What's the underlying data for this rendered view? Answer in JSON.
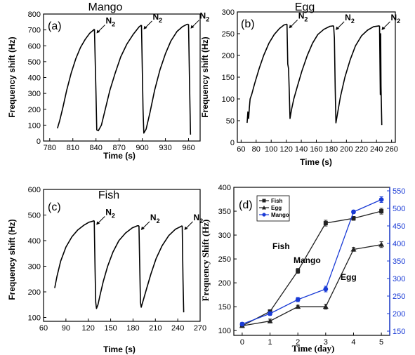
{
  "chart_data": [
    {
      "panel_label": "(a)",
      "title": "Mango",
      "type": "line",
      "xlabel": "Time (s)",
      "ylabel": "Frequency shift (Hz)",
      "xlim": [
        772,
        975
      ],
      "ylim": [
        0,
        800
      ],
      "xticks": [
        "780",
        "810",
        "840",
        "870",
        "900",
        "930",
        "960"
      ],
      "yticks": [
        "0",
        "100",
        "200",
        "300",
        "400",
        "500",
        "600",
        "700",
        "800"
      ],
      "annotation": "N",
      "annotation_sub": "2",
      "cycles": [
        {
          "x": [
            790,
            793,
            797,
            802,
            808,
            814,
            820,
            826,
            832,
            837,
            838
          ],
          "y": [
            80,
            130,
            210,
            320,
            430,
            520,
            590,
            640,
            680,
            700,
            705
          ]
        },
        {
          "x": [
            838,
            840,
            841,
            843,
            847,
            852,
            858,
            865,
            872,
            880,
            888,
            896,
            899
          ],
          "y": [
            705,
            300,
            70,
            65,
            100,
            200,
            320,
            430,
            530,
            610,
            670,
            720,
            730
          ]
        },
        {
          "x": [
            899,
            901,
            902,
            905,
            910,
            916,
            923,
            930,
            937,
            945,
            952,
            958,
            960
          ],
          "y": [
            730,
            200,
            50,
            75,
            180,
            320,
            450,
            550,
            630,
            690,
            720,
            735,
            735
          ]
        },
        {
          "x": [
            960,
            961.5,
            962.5
          ],
          "y": [
            735,
            300,
            40
          ]
        }
      ],
      "n2_marks": [
        {
          "x": 838,
          "y": 705
        },
        {
          "x": 899,
          "y": 730
        },
        {
          "x": 960,
          "y": 735
        }
      ]
    },
    {
      "panel_label": "(b)",
      "title": "Egg",
      "type": "line",
      "xlabel": "Time (s)",
      "ylabel": "Frequency shift (Hz)",
      "xlim": [
        55,
        265
      ],
      "ylim": [
        0,
        300
      ],
      "xticks": [
        "60",
        "80",
        "100",
        "120",
        "140",
        "160",
        "180",
        "200",
        "220",
        "240",
        "260"
      ],
      "yticks": [
        "0",
        "50",
        "100",
        "150",
        "200",
        "250",
        "300"
      ],
      "annotation": "N",
      "annotation_sub": "2",
      "cycles": [
        {
          "x": [
            68,
            69,
            70,
            71,
            72,
            74,
            78,
            84,
            90,
            97,
            104,
            111,
            117,
            121
          ],
          "y": [
            45,
            70,
            55,
            80,
            100,
            110,
            135,
            170,
            200,
            228,
            248,
            262,
            270,
            272
          ]
        },
        {
          "x": [
            121,
            122,
            123,
            124,
            125,
            127,
            130,
            135,
            141,
            148,
            155,
            162,
            170,
            178,
            183
          ],
          "y": [
            272,
            180,
            170,
            120,
            55,
            75,
            100,
            130,
            165,
            200,
            228,
            248,
            260,
            267,
            268
          ]
        },
        {
          "x": [
            183,
            184,
            185,
            186,
            188,
            192,
            198,
            205,
            212,
            220,
            228,
            236,
            244
          ],
          "y": [
            268,
            240,
            130,
            45,
            65,
            105,
            150,
            190,
            222,
            245,
            258,
            266,
            268
          ]
        },
        {
          "x": [
            244,
            245,
            245.5,
            246,
            247
          ],
          "y": [
            268,
            110,
            250,
            130,
            40
          ]
        }
      ],
      "n2_marks": [
        {
          "x": 121,
          "y": 272
        },
        {
          "x": 183,
          "y": 268
        },
        {
          "x": 244,
          "y": 268
        }
      ]
    },
    {
      "panel_label": "(c)",
      "title": "Fish",
      "type": "line",
      "xlabel": "Time (s)",
      "ylabel": "Frequency shift (Hz)",
      "xlim": [
        60,
        270
      ],
      "ylim": [
        85,
        600
      ],
      "xticks": [
        "60",
        "90",
        "120",
        "150",
        "180",
        "210",
        "240",
        "270"
      ],
      "yticks": [
        "100",
        "200",
        "300",
        "400",
        "500",
        "600"
      ],
      "annotation": "N",
      "annotation_sub": "2",
      "cycles": [
        {
          "x": [
            75,
            78,
            83,
            90,
            98,
            106,
            114,
            121,
            126,
            128
          ],
          "y": [
            215,
            260,
            320,
            375,
            415,
            442,
            460,
            472,
            476,
            478
          ]
        },
        {
          "x": [
            128,
            129,
            130,
            131,
            133,
            136,
            140,
            146,
            153,
            161,
            170,
            179,
            186,
            188
          ],
          "y": [
            478,
            300,
            160,
            135,
            150,
            190,
            240,
            300,
            355,
            400,
            430,
            450,
            458,
            458
          ]
        },
        {
          "x": [
            188,
            189,
            190,
            191,
            194,
            198,
            204,
            211,
            219,
            228,
            237,
            244,
            246
          ],
          "y": [
            458,
            300,
            160,
            140,
            170,
            210,
            270,
            330,
            380,
            420,
            445,
            455,
            458
          ]
        },
        {
          "x": [
            246,
            247,
            248
          ],
          "y": [
            458,
            250,
            120
          ]
        }
      ],
      "n2_marks": [
        {
          "x": 128,
          "y": 478
        },
        {
          "x": 188,
          "y": 458
        },
        {
          "x": 246,
          "y": 458
        }
      ]
    },
    {
      "panel_label": "(d)",
      "title": "",
      "type": "line",
      "xlabel": "Time (day)",
      "ylabel": "Frequency Shift (Hz)",
      "xlim": [
        -0.3,
        5.3
      ],
      "ylim": [
        90,
        400
      ],
      "y2lim": [
        138,
        560
      ],
      "xticks": [
        "0",
        "1",
        "2",
        "3",
        "4",
        "5"
      ],
      "yticks": [
        "100",
        "150",
        "200",
        "250",
        "300",
        "350",
        "400"
      ],
      "y2ticks": [
        "150",
        "200",
        "250",
        "300",
        "350",
        "400",
        "450",
        "500",
        "550"
      ],
      "x": [
        0,
        1,
        2,
        3,
        4,
        5
      ],
      "series": [
        {
          "name": "Fish",
          "values": [
            110,
            140,
            225,
            325,
            335,
            350
          ],
          "axis": "left",
          "marker": "square",
          "color": "#222222",
          "err": [
            3,
            3,
            5,
            6,
            4,
            6
          ]
        },
        {
          "name": "Egg",
          "values": [
            110,
            120,
            150,
            150,
            270,
            280
          ],
          "axis": "left",
          "marker": "triangle",
          "color": "#222222",
          "err": [
            3,
            4,
            3,
            5,
            4,
            6
          ]
        },
        {
          "name": "Mango",
          "values": [
            170,
            200,
            240,
            270,
            490,
            525
          ],
          "axis": "right",
          "marker": "circle",
          "color": "#1a3bd6",
          "err": [
            5,
            5,
            6,
            8,
            5,
            8
          ]
        }
      ],
      "series_annotations": [
        "Fish",
        "Mango",
        "Egg"
      ],
      "legend": "top-left"
    }
  ]
}
